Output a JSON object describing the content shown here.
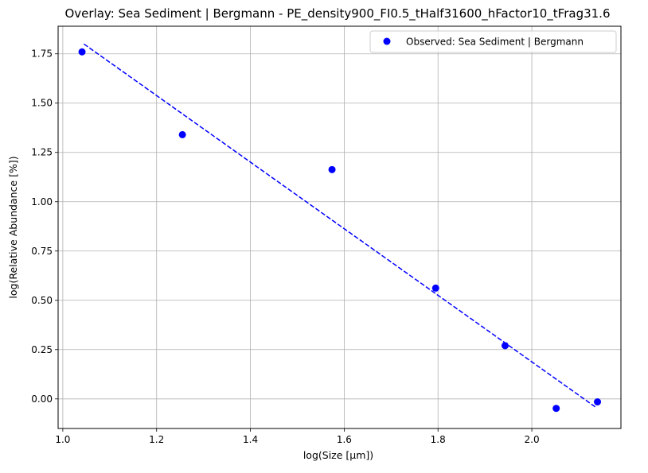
{
  "chart_data": {
    "type": "scatter",
    "title": "Overlay: Sea Sediment | Bergmann - PE_density900_FI0.5_tHalf31600_hFactor10_tFrag31.6",
    "xlabel": "log(Size [μm])",
    "ylabel": "log(Relative Abundance [%])",
    "xlim": [
      0.99,
      2.19
    ],
    "ylim": [
      -0.15,
      1.89
    ],
    "xticks": [
      1.0,
      1.2,
      1.4,
      1.6,
      1.8,
      2.0
    ],
    "xtick_labels": [
      "1.0",
      "1.2",
      "1.4",
      "1.6",
      "1.8",
      "2.0"
    ],
    "yticks": [
      0.0,
      0.25,
      0.5,
      0.75,
      1.0,
      1.25,
      1.5,
      1.75
    ],
    "ytick_labels": [
      "0.00",
      "0.25",
      "0.50",
      "0.75",
      "1.00",
      "1.25",
      "1.50",
      "1.75"
    ],
    "grid": true,
    "legend_position": "top-right",
    "series": [
      {
        "name": "Observed: Sea Sediment | Bergmann",
        "kind": "scatter",
        "color": "#0000ff",
        "x": [
          1.041,
          1.255,
          1.574,
          1.795,
          1.943,
          2.052,
          2.14
        ],
        "y": [
          1.76,
          1.34,
          1.163,
          0.562,
          0.27,
          -0.048,
          -0.015
        ]
      },
      {
        "kind": "dashed-line",
        "color": "#0000ff",
        "x": [
          1.045,
          2.135
        ],
        "y": [
          1.8,
          -0.04
        ]
      }
    ]
  }
}
